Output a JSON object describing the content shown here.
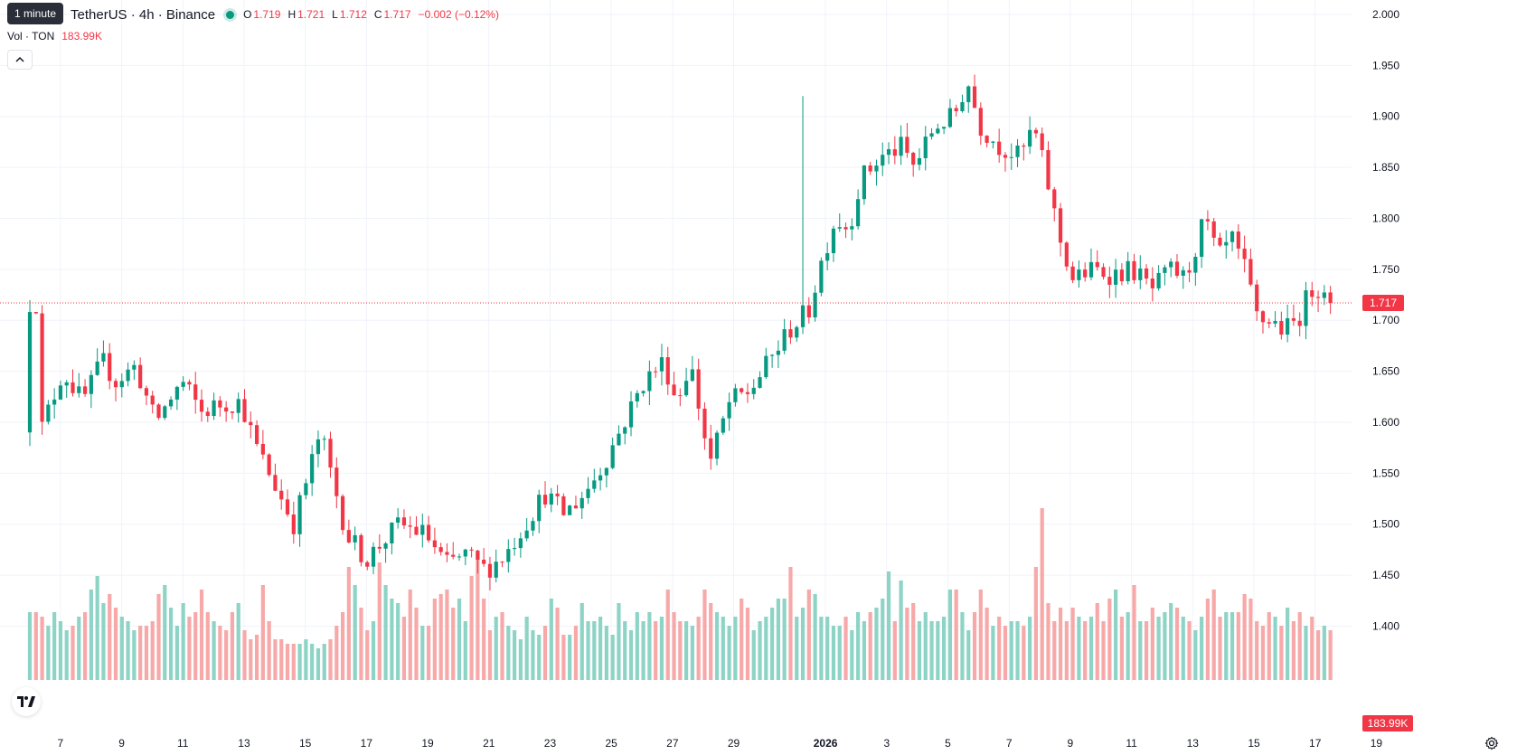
{
  "header": {
    "tooltip": "1 minute",
    "symbol_title": "TetherUS · 4h · Binance",
    "ohlc": {
      "o_label": "O",
      "o_value": "1.719",
      "h_label": "H",
      "h_value": "1.721",
      "l_label": "L",
      "l_value": "1.712",
      "c_label": "C",
      "c_value": "1.717",
      "change": "−0.002 (−0.12%)"
    },
    "volume": {
      "label": "Vol · TON",
      "value": "183.99K"
    }
  },
  "colors": {
    "up": "#089981",
    "down": "#F23645",
    "up_volume": "#8ED4C6",
    "down_volume": "#F7A9A9",
    "grid": "#F0F3FA",
    "price_line": "#F23645"
  },
  "icons": {
    "collapse": "chevron-up-icon",
    "logo": "tradingview-logo",
    "settings": "gear-icon"
  },
  "chart_data": {
    "type": "candlestick",
    "interval": "4h",
    "grid": true,
    "y_axis": {
      "range": [
        1.38,
        2.0
      ],
      "tick_labels": [
        "2.000",
        "1.950",
        "1.900",
        "1.850",
        "1.800",
        "1.750",
        "1.700",
        "1.650",
        "1.600",
        "1.550",
        "1.500",
        "1.450",
        "1.400"
      ],
      "last_price_label": "1.717",
      "volume_label": "183.99K"
    },
    "x_axis": {
      "tick_labels": [
        "7",
        "9",
        "11",
        "13",
        "15",
        "17",
        "19",
        "21",
        "23",
        "25",
        "27",
        "29",
        "2026",
        "3",
        "5",
        "7",
        "9",
        "11",
        "13",
        "15",
        "17",
        "19"
      ],
      "label_days": [
        7,
        9,
        11,
        13,
        15,
        17,
        19,
        21,
        23,
        25,
        27,
        29,
        32,
        34,
        36,
        38,
        40,
        42,
        44,
        46,
        48,
        50
      ],
      "bold_label": "2026",
      "start_day": 6.0,
      "last_bar_day": 48.5
    },
    "last_price": 1.717,
    "waypoints": [
      [
        1.595,
        1.59
      ],
      [
        5,
        1.65
      ],
      [
        8,
        1.62
      ],
      [
        11,
        1.66
      ],
      [
        13,
        1.64
      ],
      [
        16,
        1.655
      ],
      [
        19,
        1.6
      ],
      [
        23,
        1.64
      ],
      [
        26,
        1.61
      ],
      [
        29,
        1.618
      ],
      [
        32,
        1.62
      ],
      [
        34,
        1.58
      ],
      [
        37,
        1.54
      ],
      [
        40,
        1.5
      ],
      [
        44,
        1.59
      ],
      [
        46,
        1.54
      ],
      [
        48,
        1.49
      ],
      [
        51,
        1.465
      ],
      [
        53,
        1.48
      ],
      [
        56,
        1.5
      ],
      [
        60,
        1.49
      ],
      [
        63,
        1.46
      ],
      [
        66,
        1.47
      ],
      [
        69,
        1.455
      ],
      [
        72,
        1.47
      ],
      [
        75,
        1.5
      ],
      [
        78,
        1.53
      ],
      [
        81,
        1.51
      ],
      [
        84,
        1.53
      ],
      [
        87,
        1.56
      ],
      [
        90,
        1.6
      ],
      [
        93,
        1.64
      ],
      [
        96,
        1.66
      ],
      [
        98,
        1.62
      ],
      [
        100,
        1.66
      ],
      [
        103,
        1.56
      ],
      [
        106,
        1.62
      ],
      [
        109,
        1.63
      ],
      [
        112,
        1.66
      ],
      [
        115,
        1.69
      ],
      [
        118,
        1.71
      ],
      [
        120,
        1.76
      ],
      [
        122,
        1.8
      ],
      [
        124,
        1.79
      ],
      [
        126,
        1.84
      ],
      [
        129,
        1.86
      ],
      [
        132,
        1.87
      ],
      [
        134,
        1.85
      ],
      [
        137,
        1.89
      ],
      [
        140,
        1.9
      ],
      [
        142,
        1.935
      ],
      [
        144,
        1.89
      ],
      [
        147,
        1.87
      ],
      [
        150,
        1.86
      ],
      [
        152,
        1.89
      ],
      [
        154,
        1.84
      ],
      [
        156,
        1.78
      ],
      [
        158,
        1.74
      ],
      [
        161,
        1.75
      ],
      [
        164,
        1.745
      ],
      [
        167,
        1.75
      ],
      [
        170,
        1.73
      ],
      [
        173,
        1.75
      ],
      [
        175,
        1.74
      ],
      [
        178,
        1.8
      ],
      [
        180,
        1.76
      ],
      [
        182,
        1.78
      ],
      [
        184,
        1.75
      ],
      [
        186,
        1.7
      ],
      [
        188,
        1.7
      ],
      [
        190,
        1.69
      ],
      [
        192,
        1.7
      ],
      [
        194,
        1.73
      ],
      [
        196,
        1.735
      ],
      [
        197,
        1.717
      ]
    ],
    "volumes_k": [
      150,
      150,
      140,
      120,
      150,
      130,
      110,
      120,
      140,
      150,
      200,
      230,
      170,
      190,
      160,
      140,
      130,
      110,
      120,
      120,
      130,
      190,
      210,
      160,
      120,
      170,
      140,
      150,
      200,
      150,
      130,
      120,
      110,
      150,
      170,
      110,
      90,
      100,
      210,
      130,
      90,
      90,
      80,
      80,
      80,
      90,
      80,
      70,
      80,
      90,
      120,
      150,
      250,
      210,
      160,
      110,
      130,
      260,
      210,
      180,
      170,
      140,
      200,
      160,
      120,
      120,
      180,
      190,
      200,
      160,
      180,
      130,
      230,
      280,
      180,
      110,
      140,
      150,
      120,
      110,
      90,
      140,
      110,
      100,
      120,
      180,
      160,
      100,
      100,
      120,
      170,
      130,
      130,
      140,
      120,
      100,
      170,
      130,
      110,
      150,
      130,
      150,
      130,
      140,
      200,
      150,
      130,
      130,
      120,
      140,
      200,
      170,
      150,
      140,
      120,
      140,
      180,
      160,
      110,
      130,
      140,
      160,
      180,
      180,
      250,
      140,
      160,
      200,
      190,
      140,
      140,
      120,
      120,
      140,
      110,
      150,
      130,
      150,
      160,
      180,
      240,
      130,
      220,
      160,
      170,
      130,
      150,
      130,
      130,
      140,
      200,
      200,
      150,
      110,
      150,
      200,
      160,
      120,
      140,
      120,
      130,
      130,
      120,
      140,
      250,
      380,
      170,
      130,
      160,
      130,
      160,
      140,
      130,
      140,
      170,
      130,
      180,
      200,
      140,
      150,
      210,
      130,
      130,
      160,
      140,
      150,
      170,
      160,
      140,
      130,
      110,
      140,
      180,
      200,
      140,
      150,
      150,
      150,
      190,
      180,
      130,
      120,
      150,
      140,
      120,
      160,
      130,
      150,
      120,
      140,
      110,
      120,
      110
    ]
  }
}
